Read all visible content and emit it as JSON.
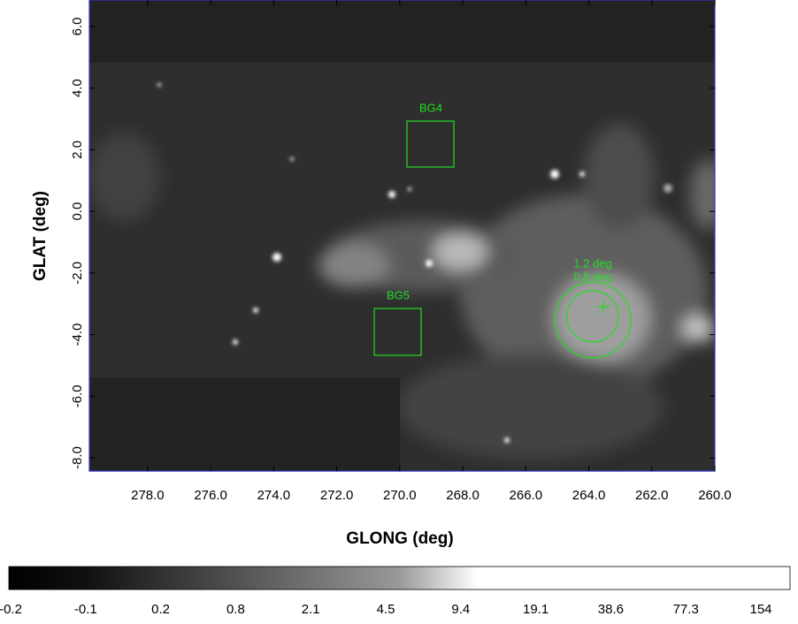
{
  "chart_data": {
    "type": "image",
    "xlabel": "GLONG (deg)",
    "ylabel": "GLAT (deg)",
    "xlim": [
      279.85,
      260.0
    ],
    "ylim": [
      -8.43,
      6.86
    ],
    "xticks": [
      {
        "value": 278,
        "label": "278.0"
      },
      {
        "value": 276,
        "label": "276.0"
      },
      {
        "value": 274,
        "label": "274.0"
      },
      {
        "value": 272,
        "label": "272.0"
      },
      {
        "value": 270,
        "label": "270.0"
      },
      {
        "value": 268,
        "label": "268.0"
      },
      {
        "value": 266,
        "label": "266.0"
      },
      {
        "value": 264,
        "label": "264.0"
      },
      {
        "value": 262,
        "label": "262.0"
      },
      {
        "value": 260,
        "label": "260.0"
      }
    ],
    "yticks": [
      {
        "value": 6,
        "label": "6.0"
      },
      {
        "value": 4,
        "label": "4.0"
      },
      {
        "value": 2,
        "label": "2.0"
      },
      {
        "value": 0,
        "label": "0.0"
      },
      {
        "value": -2,
        "label": "-2.0"
      },
      {
        "value": -4,
        "label": "-4.0"
      },
      {
        "value": -6,
        "label": "-6.0"
      },
      {
        "value": -8,
        "label": "-8.0"
      }
    ],
    "regions": [
      "BG4",
      "BG5",
      "1.2 deg",
      "0.8 deg"
    ],
    "colorbar": {
      "labels": [
        "-0.2",
        "-0.1",
        "0.2",
        "0.8",
        "2.1",
        "4.5",
        "9.4",
        "19.1",
        "38.6",
        "77.3",
        "154"
      ]
    }
  }
}
